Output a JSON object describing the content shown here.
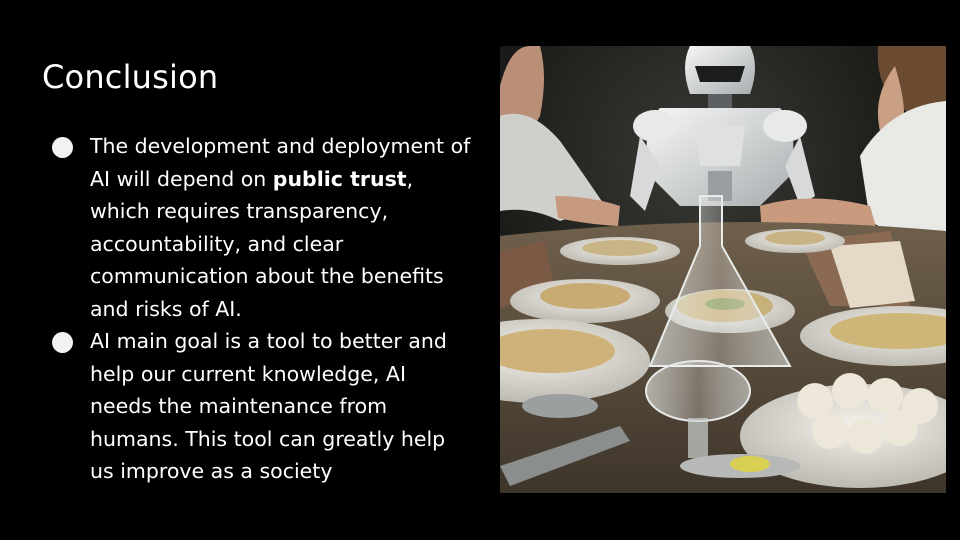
{
  "slide": {
    "title": "Conclusion",
    "bullets": [
      {
        "before": "The development and deployment of AI will depend on ",
        "emphasis": "public trust",
        "after": ", which requires transparency, accountability, and clear communication about the benefits and risks of AI."
      },
      {
        "text": "AI main goal is a tool to better and help our current knowledge, AI needs the maintenance from humans. This tool can greatly help us improve as a society"
      }
    ]
  },
  "image": {
    "subject": "illustration-robot-and-people-dining-table"
  },
  "colors": {
    "background": "#000000",
    "text": "#ffffff",
    "bullet": "#f2f2f2"
  }
}
